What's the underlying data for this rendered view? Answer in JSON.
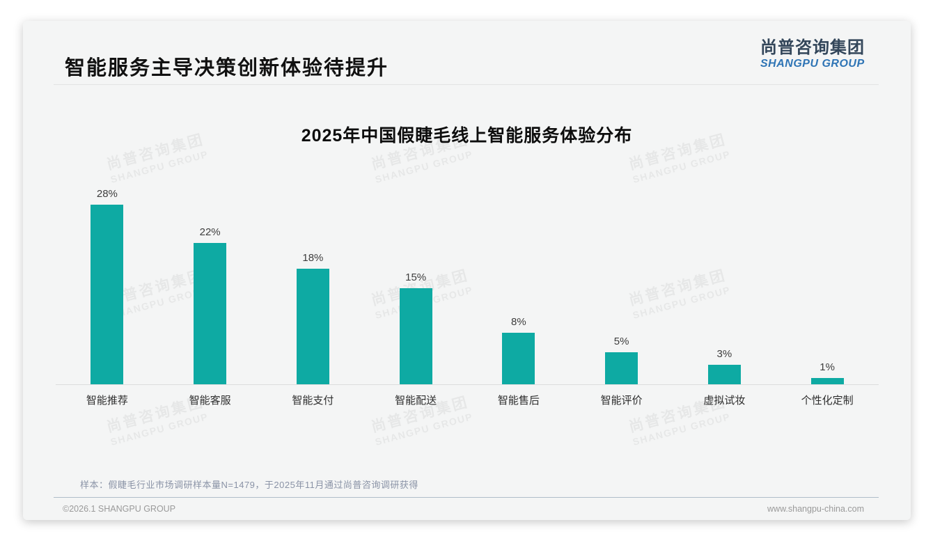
{
  "page": {
    "title": "智能服务主导决策创新体验待提升",
    "logo": {
      "cn": "尚普咨询集团",
      "en": "SHANGPU GROUP"
    },
    "watermark": {
      "cn": "尚普咨询集团",
      "en": "SHANGPU GROUP"
    },
    "footnote": "样本：假睫毛行业市场调研样本量N=1479，于2025年11月通过尚普咨询调研获得",
    "footer_left": "©2026.1 SHANGPU GROUP",
    "footer_right": "www.shangpu-china.com"
  },
  "colors": {
    "bar": "#0eaaa3",
    "logo_cn": "#33465a",
    "logo_en": "#2e74b5",
    "card_background": "#f4f5f5",
    "footnote_text": "#8a93a6"
  },
  "chart_data": {
    "type": "bar",
    "title": "2025年中国假睫毛线上智能服务体验分布",
    "categories": [
      "智能推荐",
      "智能客服",
      "智能支付",
      "智能配送",
      "智能售后",
      "智能评价",
      "虚拟试妆",
      "个性化定制"
    ],
    "values": [
      28,
      22,
      18,
      15,
      8,
      5,
      3,
      1
    ],
    "data_labels": [
      "28%",
      "22%",
      "18%",
      "15%",
      "8%",
      "5%",
      "3%",
      "1%"
    ],
    "unit": "%",
    "xlabel": "",
    "ylabel": "",
    "ylim": [
      0,
      30
    ],
    "grid": false,
    "axes_hidden": true,
    "legend": null,
    "bar_color": "#0eaaa3"
  }
}
